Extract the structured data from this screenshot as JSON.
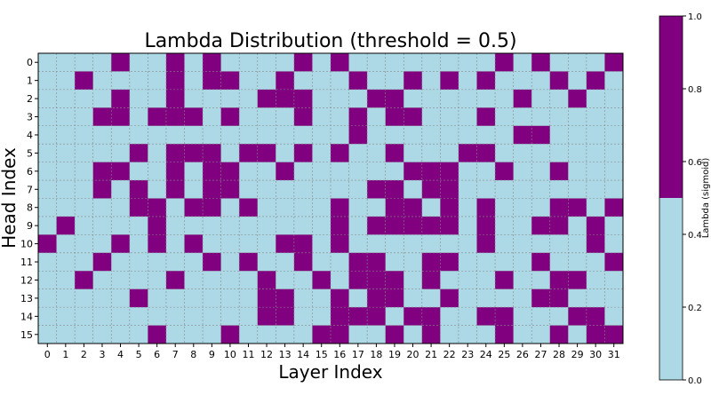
{
  "chart_data": {
    "type": "heatmap",
    "title": "Lambda Distribution (threshold = 0.5)",
    "xlabel": "Layer Index",
    "ylabel": "Head Index",
    "x_ticks": [
      "0",
      "1",
      "2",
      "3",
      "4",
      "5",
      "6",
      "7",
      "8",
      "9",
      "10",
      "11",
      "12",
      "13",
      "14",
      "15",
      "16",
      "17",
      "18",
      "19",
      "20",
      "21",
      "22",
      "23",
      "24",
      "25",
      "26",
      "27",
      "28",
      "29",
      "30",
      "31"
    ],
    "y_ticks": [
      "0",
      "1",
      "2",
      "3",
      "4",
      "5",
      "6",
      "7",
      "8",
      "9",
      "10",
      "11",
      "12",
      "13",
      "14",
      "15"
    ],
    "threshold": 0.5,
    "grid": true,
    "value_encoding": "1 = above threshold (purple), 0 = below threshold (light blue)",
    "above_threshold_cells_by_row": [
      [
        4,
        7,
        9,
        14,
        16,
        25,
        27,
        31
      ],
      [
        2,
        7,
        9,
        10,
        13,
        17,
        20,
        22,
        24,
        28,
        30
      ],
      [
        4,
        7,
        12,
        13,
        14,
        18,
        19,
        26,
        29
      ],
      [
        3,
        4,
        6,
        7,
        8,
        10,
        14,
        17,
        19,
        20,
        24
      ],
      [
        17,
        26,
        27
      ],
      [
        5,
        7,
        8,
        9,
        11,
        12,
        14,
        16,
        19,
        23,
        24
      ],
      [
        3,
        4,
        7,
        9,
        10,
        13,
        20,
        21,
        22,
        25,
        28
      ],
      [
        3,
        5,
        7,
        9,
        10,
        18,
        19,
        21,
        22
      ],
      [
        5,
        6,
        8,
        9,
        11,
        16,
        19,
        20,
        22,
        24,
        28,
        29,
        31
      ],
      [
        1,
        6,
        16,
        18,
        19,
        20,
        21,
        22,
        24,
        27,
        28,
        30
      ],
      [
        0,
        4,
        6,
        8,
        13,
        14,
        16,
        24,
        30
      ],
      [
        3,
        9,
        11,
        14,
        17,
        18,
        21,
        22,
        27,
        31
      ],
      [
        2,
        7,
        12,
        15,
        17,
        18,
        19,
        21,
        25,
        28,
        29
      ],
      [
        5,
        12,
        13,
        16,
        18,
        19,
        22,
        27,
        28
      ],
      [
        12,
        13,
        16,
        17,
        18,
        20,
        21,
        24,
        25,
        29,
        30
      ],
      [
        6,
        10,
        15,
        16,
        19,
        21,
        25,
        28,
        30,
        31
      ]
    ],
    "colorbar": {
      "label": "Lambda (sigmoid)",
      "range": [
        0.0,
        1.0
      ],
      "ticks": [
        "0.0",
        "0.2",
        "0.4",
        "0.6",
        "0.8",
        "1.0"
      ],
      "low_color": "#add8e6",
      "high_color": "#800080"
    }
  }
}
